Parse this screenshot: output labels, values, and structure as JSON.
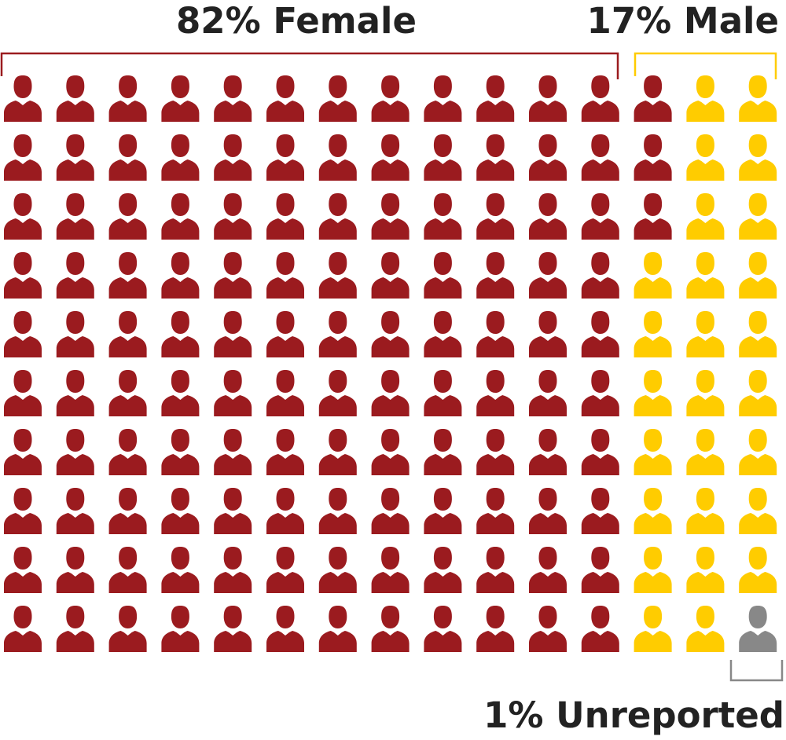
{
  "chart_data": {
    "type": "pictogram",
    "grid": {
      "rows": 10,
      "columns": 15
    },
    "fill_order": "column-major",
    "categories": [
      {
        "label": "82% Female",
        "percent": 82,
        "count": 123,
        "color": "#9b1b1f"
      },
      {
        "label": "17% Male",
        "percent": 17,
        "count": 26,
        "color": "#ffcc00"
      },
      {
        "label": "1% Unreported",
        "percent": 1,
        "count": 1,
        "color": "#888888"
      }
    ],
    "icon": "person-icon",
    "total_icons": 150
  }
}
